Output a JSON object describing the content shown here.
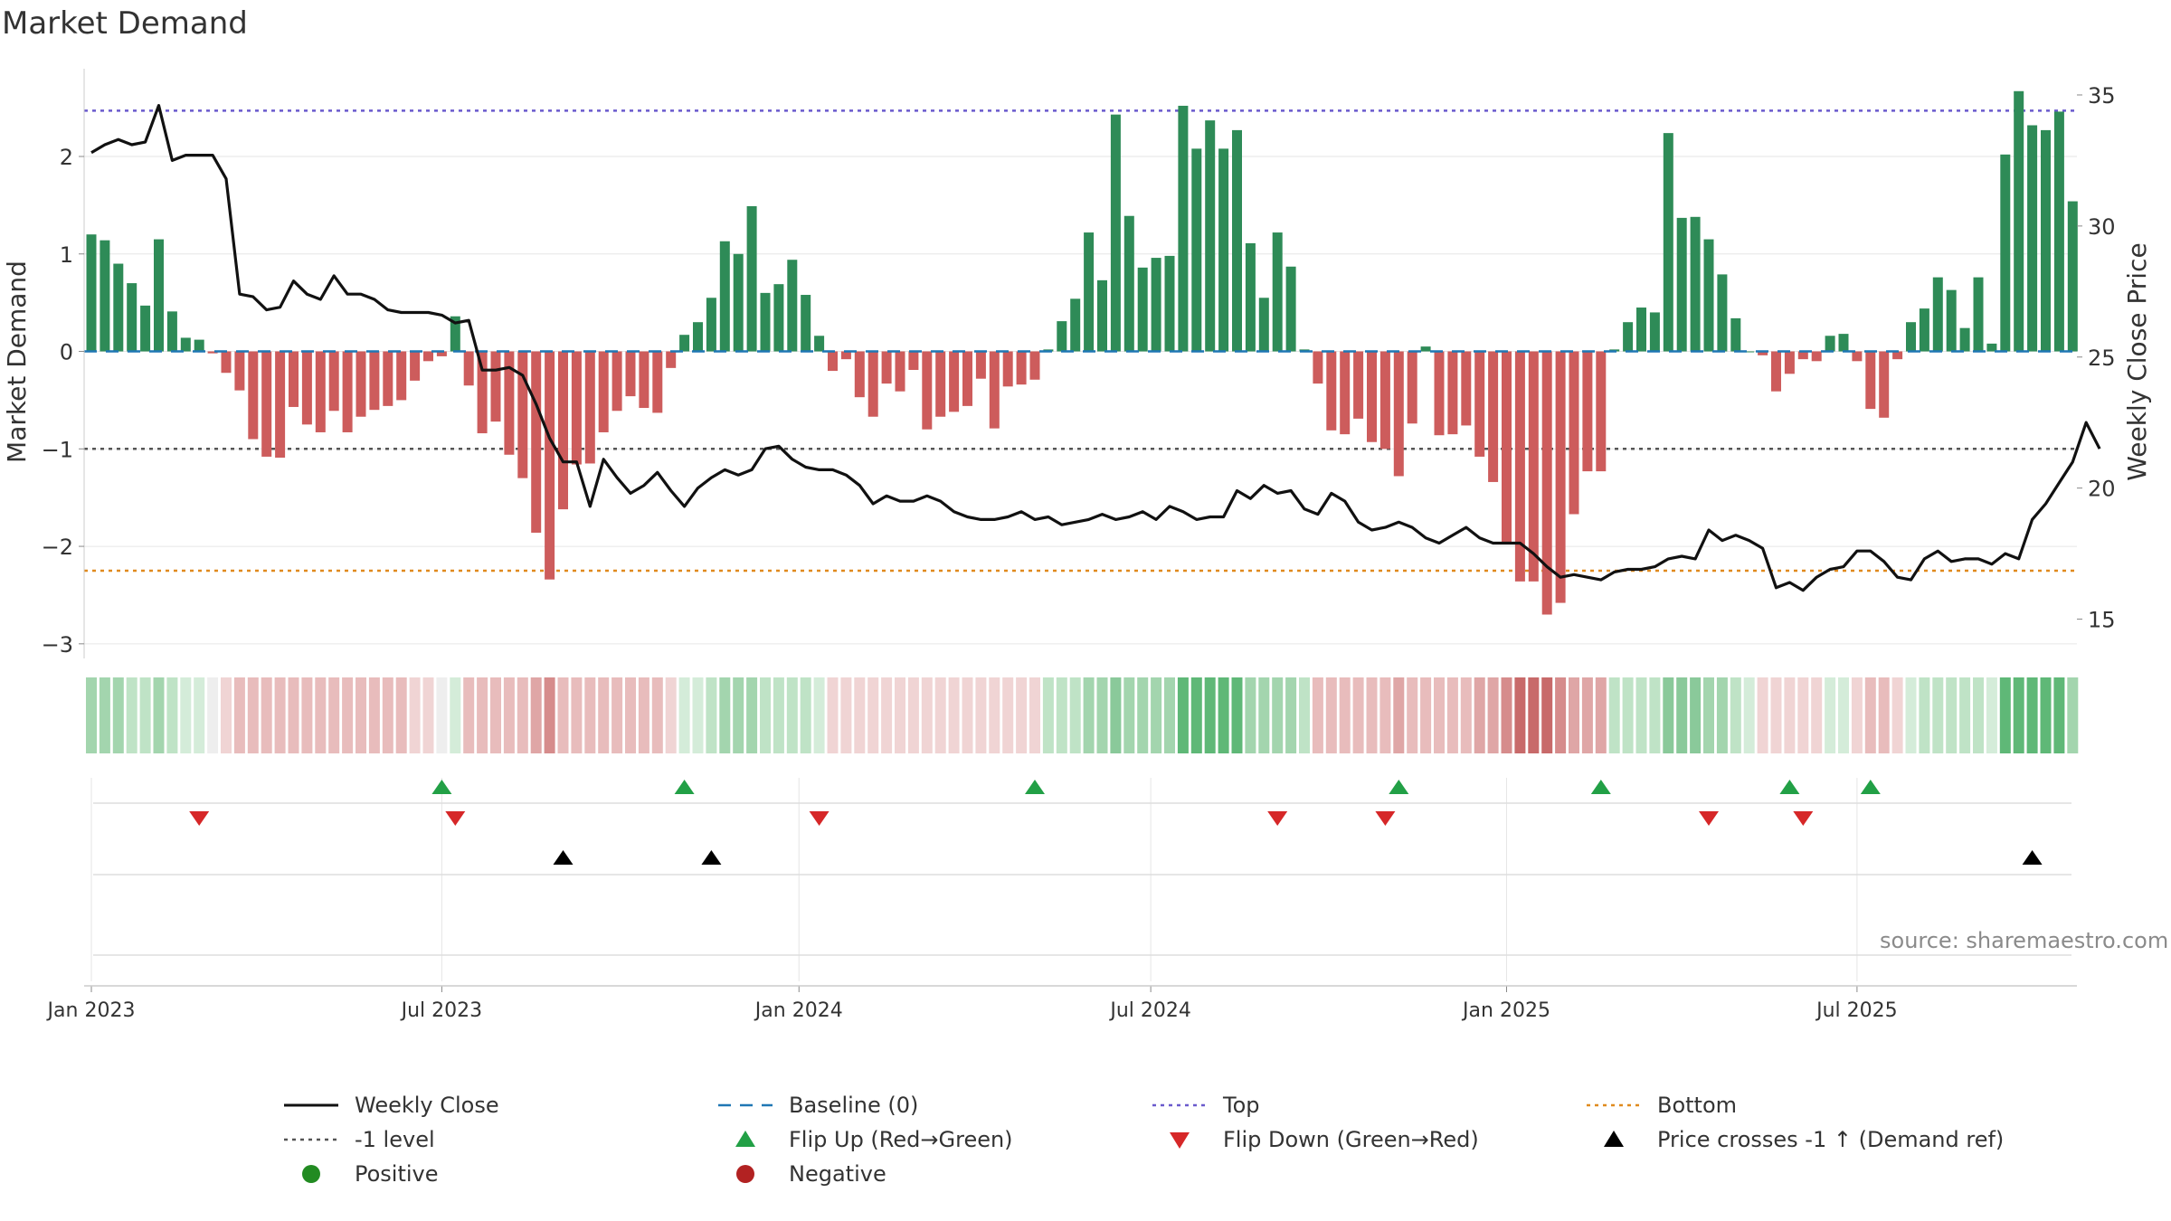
{
  "title": "Market Demand",
  "source": "source: sharemaestro.com",
  "colors": {
    "positive": "#2e8b57",
    "negative": "#cd5c5c",
    "close": "#111111",
    "baseline": "#1f77b4",
    "top": "#6a5acd",
    "bottom": "#e08a1e",
    "minus1": "#555555",
    "flip_up": "#22a046",
    "flip_down": "#d62728",
    "cross": "#000000",
    "grid": "#e6e6e6"
  },
  "chart_data": {
    "type": "bar",
    "title": "Market Demand",
    "ylabel_left": "Market Demand",
    "ylabel_right": "Weekly Close Price",
    "left_ylim": [
      -3.15,
      2.9
    ],
    "right_ylim": [
      13.5,
      36
    ],
    "left_ticks": [
      {
        "value": 2,
        "label": "2"
      },
      {
        "value": 1,
        "label": "1"
      },
      {
        "value": 0,
        "label": "0"
      },
      {
        "value": -1,
        "label": "−1"
      },
      {
        "value": -2,
        "label": "−2"
      },
      {
        "value": -3,
        "label": "−3"
      }
    ],
    "right_ticks": [
      {
        "value": 35,
        "label": "35"
      },
      {
        "value": 30,
        "label": "30"
      },
      {
        "value": 25,
        "label": "25"
      },
      {
        "value": 20,
        "label": "20"
      },
      {
        "value": 15,
        "label": "15"
      }
    ],
    "x_ticks": [
      {
        "week": 1,
        "label": "Jan 2023"
      },
      {
        "week": 27,
        "label": "Jul 2023"
      },
      {
        "week": 53.5,
        "label": "Jan 2024"
      },
      {
        "week": 79.6,
        "label": "Jul 2024"
      },
      {
        "week": 106,
        "label": "Jan 2025"
      },
      {
        "week": 132,
        "label": "Jul 2025"
      }
    ],
    "top_level": 2.47,
    "bottom_level": -2.25,
    "minus1_level": -1,
    "baseline_level": 0,
    "demand": [
      1.2,
      1.14,
      0.9,
      0.7,
      0.47,
      1.15,
      0.41,
      0.14,
      0.12,
      -0.02,
      -0.22,
      -0.4,
      -0.9,
      -1.08,
      -1.09,
      -0.57,
      -0.75,
      -0.83,
      -0.61,
      -0.83,
      -0.67,
      -0.6,
      -0.56,
      -0.5,
      -0.3,
      -0.1,
      -0.05,
      0.36,
      -0.35,
      -0.84,
      -0.72,
      -1.06,
      -1.3,
      -1.86,
      -2.34,
      -1.62,
      -1.16,
      -1.15,
      -0.83,
      -0.61,
      -0.46,
      -0.58,
      -0.63,
      -0.17,
      0.17,
      0.3,
      0.55,
      1.13,
      1.0,
      1.49,
      0.6,
      0.69,
      0.94,
      0.58,
      0.16,
      -0.2,
      -0.08,
      -0.47,
      -0.67,
      -0.33,
      -0.41,
      -0.19,
      -0.8,
      -0.67,
      -0.62,
      -0.56,
      -0.28,
      -0.79,
      -0.36,
      -0.34,
      -0.29,
      0.02,
      0.31,
      0.54,
      1.22,
      0.73,
      2.43,
      1.39,
      0.86,
      0.96,
      0.98,
      2.52,
      2.08,
      2.37,
      2.08,
      2.27,
      1.11,
      0.55,
      1.22,
      0.87,
      0.02,
      -0.33,
      -0.81,
      -0.85,
      -0.69,
      -0.93,
      -1.0,
      -1.28,
      -0.74,
      0.05,
      -0.86,
      -0.85,
      -0.76,
      -1.08,
      -1.34,
      -1.98,
      -2.36,
      -2.36,
      -2.7,
      -2.58,
      -1.67,
      -1.23,
      -1.23,
      0.02,
      0.3,
      0.45,
      0.4,
      2.24,
      1.37,
      1.38,
      1.15,
      0.79,
      0.34,
      0.0,
      -0.04,
      -0.41,
      -0.23,
      -0.08,
      -0.1,
      0.16,
      0.18,
      -0.1,
      -0.59,
      -0.68,
      -0.08,
      0.3,
      0.44,
      0.76,
      0.63,
      0.24,
      0.76,
      0.08,
      2.02,
      2.67,
      2.32,
      2.27,
      2.46,
      1.54
    ],
    "close": [
      32.8,
      33.1,
      33.3,
      33.1,
      33.2,
      34.6,
      32.5,
      32.7,
      32.7,
      32.7,
      31.8,
      27.4,
      27.3,
      26.8,
      26.9,
      27.9,
      27.4,
      27.2,
      28.1,
      27.4,
      27.4,
      27.2,
      26.8,
      26.7,
      26.7,
      26.7,
      26.6,
      26.3,
      26.4,
      24.5,
      24.5,
      24.6,
      24.3,
      23.2,
      21.9,
      21.0,
      21.0,
      19.3,
      21.1,
      20.4,
      19.8,
      20.1,
      20.6,
      19.9,
      19.3,
      20.0,
      20.4,
      20.7,
      20.5,
      20.7,
      21.5,
      21.6,
      21.1,
      20.8,
      20.7,
      20.7,
      20.5,
      20.1,
      19.4,
      19.7,
      19.5,
      19.5,
      19.7,
      19.5,
      19.1,
      18.9,
      18.8,
      18.8,
      18.9,
      19.1,
      18.8,
      18.9,
      18.6,
      18.7,
      18.8,
      19.0,
      18.8,
      18.9,
      19.1,
      18.8,
      19.3,
      19.1,
      18.8,
      18.9,
      18.9,
      19.9,
      19.6,
      20.1,
      19.8,
      19.9,
      19.2,
      19.0,
      19.8,
      19.5,
      18.7,
      18.4,
      18.5,
      18.7,
      18.5,
      18.1,
      17.9,
      18.2,
      18.5,
      18.1,
      17.9,
      17.9,
      17.9,
      17.5,
      17.0,
      16.6,
      16.7,
      16.6,
      16.5,
      16.8,
      16.9,
      16.9,
      17.0,
      17.3,
      17.4,
      17.3,
      18.4,
      18.0,
      18.2,
      18.0,
      17.7,
      16.2,
      16.4,
      16.1,
      16.6,
      16.9,
      17.0,
      17.6,
      17.6,
      17.2,
      16.6,
      16.5,
      17.3,
      17.6,
      17.2,
      17.3,
      17.3,
      17.1,
      17.5,
      17.3,
      18.8,
      19.4,
      20.2,
      21.0,
      22.5,
      21.5
    ],
    "strip_shades": [
      3,
      3,
      3,
      2,
      2,
      3,
      2,
      1,
      1,
      0,
      -1,
      -2,
      -2,
      -2,
      -2,
      -2,
      -2,
      -2,
      -2,
      -2,
      -2,
      -2,
      -2,
      -2,
      -1,
      -1,
      0,
      1,
      -2,
      -2,
      -2,
      -2,
      -2,
      -3,
      -4,
      -2,
      -2,
      -2,
      -2,
      -2,
      -2,
      -2,
      -2,
      -1,
      1,
      1,
      2,
      3,
      3,
      3,
      2,
      2,
      2,
      2,
      1,
      -1,
      -1,
      -1,
      -1,
      -1,
      -1,
      -1,
      -1,
      -1,
      -1,
      -1,
      -1,
      -1,
      -1,
      -1,
      -1,
      2,
      2,
      2,
      3,
      3,
      4,
      3,
      3,
      3,
      3,
      5,
      5,
      5,
      5,
      5,
      3,
      3,
      3,
      3,
      2,
      -2,
      -2,
      -2,
      -2,
      -2,
      -2,
      -3,
      -2,
      -2,
      -2,
      -2,
      -2,
      -3,
      -3,
      -4,
      -5,
      -5,
      -5,
      -4,
      -3,
      -3,
      -3,
      2,
      2,
      2,
      2,
      4,
      4,
      4,
      3,
      3,
      2,
      1,
      -1,
      -1,
      -1,
      -1,
      -1,
      1,
      1,
      -1,
      -2,
      -2,
      -1,
      1,
      2,
      2,
      2,
      2,
      2,
      1,
      5,
      5,
      5,
      5,
      5,
      3
    ],
    "flip_up_weeks": [
      27,
      45,
      71,
      98,
      113,
      127,
      133
    ],
    "flip_down_weeks": [
      9,
      28,
      55,
      89,
      97,
      121,
      128
    ],
    "price_cross_weeks": [
      36,
      47,
      145
    ]
  },
  "legend": {
    "weekly_close": "Weekly Close",
    "baseline": "Baseline (0)",
    "top": "Top",
    "bottom": "Bottom",
    "minus1": "-1 level",
    "flip_up": "Flip Up (Red→Green)",
    "flip_down": "Flip Down (Green→Red)",
    "price_cross": "Price crosses -1 ↑ (Demand ref)",
    "positive": "Positive",
    "negative": "Negative"
  }
}
